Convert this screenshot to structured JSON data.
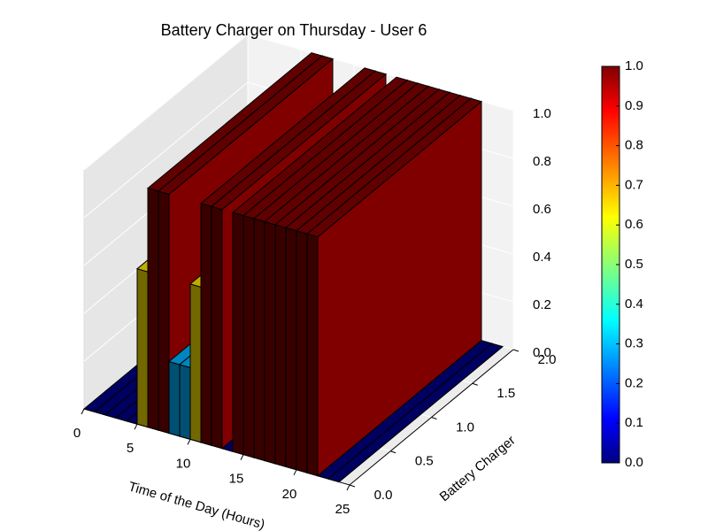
{
  "chart_data": {
    "type": "bar3d",
    "title": "Battery Charger on Thursday - User 6",
    "xlabel": "Time of the Day (Hours)",
    "ylabel": "Battery Charger",
    "x": [
      0,
      1,
      2,
      3,
      4,
      5,
      6,
      7,
      8,
      9,
      10,
      11,
      12,
      13,
      14,
      15,
      16,
      17,
      18,
      19,
      20,
      21,
      22,
      23
    ],
    "values": [
      0,
      0,
      0,
      0,
      0,
      0.65,
      1,
      1,
      0.3,
      0.3,
      0.65,
      1,
      1,
      0,
      1,
      1,
      1,
      1,
      1,
      1,
      1,
      1,
      0,
      0
    ],
    "xlim": [
      0,
      25
    ],
    "xticks": [
      0,
      5,
      10,
      15,
      20,
      25
    ],
    "ylim": [
      0,
      2
    ],
    "yticks": [
      {
        "value": 0,
        "label": "0.0"
      },
      {
        "value": 0.5,
        "label": "0.5"
      },
      {
        "value": 1,
        "label": "1.0"
      },
      {
        "value": 1.5,
        "label": "1.5"
      },
      {
        "value": 2,
        "label": "2.0"
      }
    ],
    "zlim": [
      0,
      1
    ],
    "zticks": [
      {
        "value": 0,
        "label": "0.0"
      },
      {
        "value": 0.2,
        "label": "0.2"
      },
      {
        "value": 0.4,
        "label": "0.4"
      },
      {
        "value": 0.6,
        "label": "0.6"
      },
      {
        "value": 0.8,
        "label": "0.8"
      },
      {
        "value": 1,
        "label": "1.0"
      }
    ],
    "colormap": "jet",
    "clim": [
      0,
      1
    ],
    "cticks": [
      {
        "value": 0,
        "label": "0.0"
      },
      {
        "value": 0.1,
        "label": "0.1"
      },
      {
        "value": 0.2,
        "label": "0.2"
      },
      {
        "value": 0.3,
        "label": "0.3"
      },
      {
        "value": 0.4,
        "label": "0.4"
      },
      {
        "value": 0.5,
        "label": "0.5"
      },
      {
        "value": 0.6,
        "label": "0.6"
      },
      {
        "value": 0.7,
        "label": "0.7"
      },
      {
        "value": 0.8,
        "label": "0.8"
      },
      {
        "value": 0.9,
        "label": "0.9"
      },
      {
        "value": 1,
        "label": "1.0"
      }
    ]
  }
}
